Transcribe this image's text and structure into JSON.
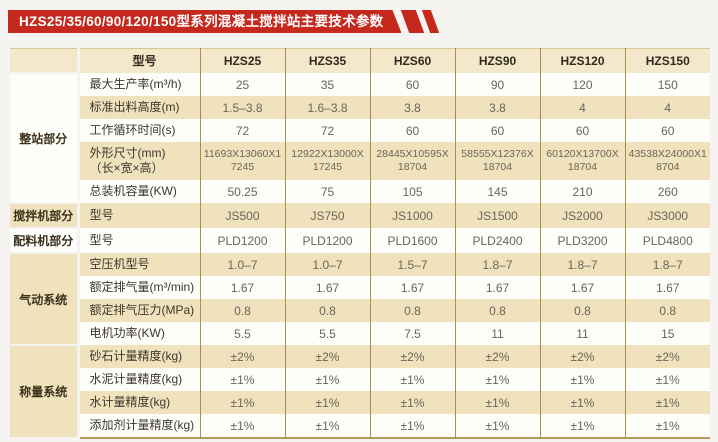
{
  "page": {
    "title": "HZS25/35/60/90/120/150型系列混凝土搅拌站主要技术参数"
  },
  "colors": {
    "banner_red": "#c5281d",
    "group_tan": "#d2ae6e",
    "stripe_cream": "#efe2bc",
    "row_white": "#fdfdfa",
    "header_cream": "#f3e8c9",
    "grid_line": "#a98e52"
  },
  "table": {
    "header": {
      "model_label": "型号",
      "models": [
        "HZS25",
        "HZS35",
        "HZS60",
        "HZS90",
        "HZS120",
        "HZS150"
      ]
    },
    "groups": [
      {
        "name": "整站部分",
        "rows": [
          {
            "label": "最大生产率(m³/h)",
            "values": [
              "25",
              "35",
              "60",
              "90",
              "120",
              "150"
            ]
          },
          {
            "label": "标准出料高度(m)",
            "values": [
              "1.5–3.8",
              "1.6–3.8",
              "3.8",
              "3.8",
              "4",
              "4"
            ]
          },
          {
            "label": "工作循环时间(s)",
            "values": [
              "72",
              "72",
              "60",
              "60",
              "60",
              "60"
            ]
          },
          {
            "label": "外形尺寸(mm)",
            "label2": "（长×宽×高）",
            "values": [
              "11693X13060X17245",
              "12922X13000X17245",
              "28445X10595X18704",
              "58555X12376X18704",
              "60120X13700X18704",
              "43538X24000X18704"
            ]
          },
          {
            "label": "总装机容量(KW)",
            "values": [
              "50.25",
              "75",
              "105",
              "145",
              "210",
              "260"
            ]
          }
        ]
      },
      {
        "name": "搅拌机部分",
        "rows": [
          {
            "label": "型号",
            "values": [
              "JS500",
              "JS750",
              "JS1000",
              "JS1500",
              "JS2000",
              "JS3000"
            ]
          }
        ]
      },
      {
        "name": "配料机部分",
        "rows": [
          {
            "label": "型号",
            "values": [
              "PLD1200",
              "PLD1200",
              "PLD1600",
              "PLD2400",
              "PLD3200",
              "PLD4800"
            ]
          }
        ]
      },
      {
        "name": "气动系统",
        "rows": [
          {
            "label": "空压机型号",
            "values": [
              "1.0–7",
              "1.0–7",
              "1.5–7",
              "1.8–7",
              "1.8–7",
              "1.8–7"
            ]
          },
          {
            "label": "额定排气量(m³/min)",
            "values": [
              "1.67",
              "1.67",
              "1.67",
              "1.67",
              "1.67",
              "1.67"
            ]
          },
          {
            "label": "额定排气压力(MPa)",
            "values": [
              "0.8",
              "0.8",
              "0.8",
              "0.8",
              "0.8",
              "0.8"
            ]
          },
          {
            "label": "电机功率(KW)",
            "values": [
              "5.5",
              "5.5",
              "7.5",
              "11",
              "11",
              "15"
            ]
          }
        ]
      },
      {
        "name": "称量系统",
        "rows": [
          {
            "label": "砂石计量精度(kg)",
            "values": [
              "±2%",
              "±2%",
              "±2%",
              "±2%",
              "±2%",
              "±2%"
            ]
          },
          {
            "label": "水泥计量精度(kg)",
            "values": [
              "±1%",
              "±1%",
              "±1%",
              "±1%",
              "±1%",
              "±1%"
            ]
          },
          {
            "label": "水计量精度(kg)",
            "values": [
              "±1%",
              "±1%",
              "±1%",
              "±1%",
              "±1%",
              "±1%"
            ]
          },
          {
            "label": "添加剂计量精度(kg)",
            "values": [
              "±1%",
              "±1%",
              "±1%",
              "±1%",
              "±1%",
              "±1%"
            ]
          }
        ]
      }
    ]
  }
}
